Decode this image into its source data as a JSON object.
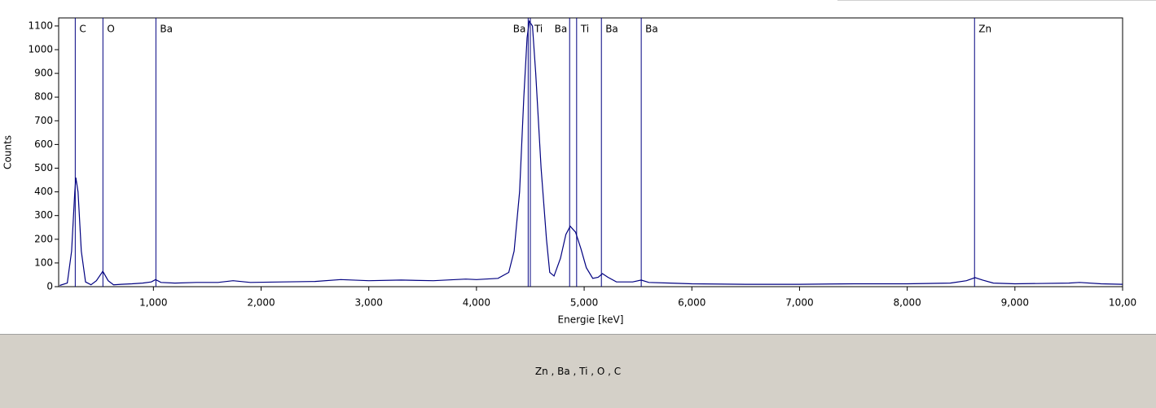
{
  "chart_data": {
    "type": "line",
    "ylabel": "Counts",
    "xlabel": "Energie [keV]",
    "footer": "Zn , Ba , Ti , O , C",
    "color": "#000080",
    "marker_color": "#000080",
    "xlim": [
      0.12,
      10
    ],
    "ylim": [
      0,
      1134
    ],
    "xticks": [
      {
        "value": 1,
        "label": "1,000"
      },
      {
        "value": 2,
        "label": "2,000"
      },
      {
        "value": 3,
        "label": "3,000"
      },
      {
        "value": 4,
        "label": "4,000"
      },
      {
        "value": 5,
        "label": "5,000"
      },
      {
        "value": 6,
        "label": "6,000"
      },
      {
        "value": 7,
        "label": "7,000"
      },
      {
        "value": 8,
        "label": "8,000"
      },
      {
        "value": 9,
        "label": "9,000"
      },
      {
        "value": 10,
        "label": "10,00"
      }
    ],
    "yticks": [
      0,
      100,
      200,
      300,
      400,
      500,
      600,
      700,
      800,
      900,
      1000,
      1100
    ],
    "markers": [
      {
        "label": "C",
        "x": 0.274
      },
      {
        "label": "O",
        "x": 0.531
      },
      {
        "label": "Ba",
        "x": 1.023
      },
      {
        "label": "Ba",
        "x": 4.48
      },
      {
        "label": "Ti",
        "x": 4.5
      },
      {
        "label": "Ba",
        "x": 4.865
      },
      {
        "label": "Ti",
        "x": 4.93
      },
      {
        "label": "Ba",
        "x": 5.16
      },
      {
        "label": "Ba",
        "x": 5.53
      },
      {
        "label": "Zn",
        "x": 8.625
      }
    ],
    "x": [
      0.13,
      0.2,
      0.24,
      0.27,
      0.28,
      0.3,
      0.33,
      0.37,
      0.42,
      0.47,
      0.53,
      0.58,
      0.63,
      0.7,
      0.8,
      0.9,
      0.98,
      1.02,
      1.07,
      1.2,
      1.4,
      1.6,
      1.74,
      1.9,
      2.2,
      2.5,
      2.74,
      3.0,
      3.3,
      3.6,
      3.9,
      4.0,
      4.2,
      4.3,
      4.35,
      4.4,
      4.44,
      4.47,
      4.49,
      4.52,
      4.55,
      4.6,
      4.65,
      4.68,
      4.72,
      4.78,
      4.83,
      4.87,
      4.92,
      4.97,
      5.02,
      5.08,
      5.13,
      5.17,
      5.22,
      5.3,
      5.45,
      5.53,
      5.6,
      5.8,
      6.0,
      6.5,
      7.0,
      7.5,
      8.0,
      8.4,
      8.55,
      8.63,
      8.7,
      8.8,
      9.0,
      9.5,
      9.6,
      9.8,
      10
    ],
    "values": [
      5,
      15,
      150,
      400,
      460,
      400,
      150,
      20,
      8,
      25,
      65,
      25,
      8,
      10,
      12,
      15,
      20,
      30,
      18,
      15,
      18,
      18,
      25,
      18,
      20,
      22,
      30,
      25,
      28,
      25,
      32,
      30,
      35,
      60,
      150,
      400,
      800,
      1050,
      1120,
      1100,
      900,
      500,
      200,
      60,
      45,
      120,
      220,
      255,
      230,
      160,
      80,
      35,
      40,
      55,
      40,
      20,
      20,
      28,
      18,
      15,
      12,
      10,
      10,
      12,
      12,
      15,
      25,
      38,
      28,
      15,
      12,
      15,
      18,
      12,
      10
    ]
  }
}
